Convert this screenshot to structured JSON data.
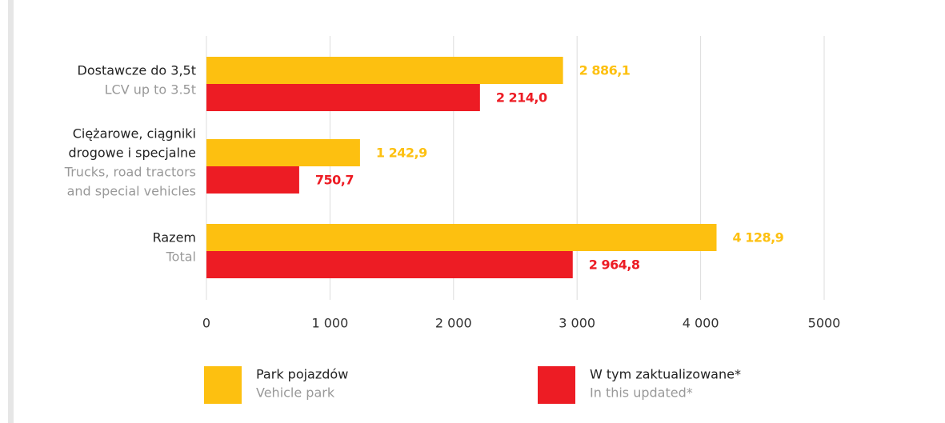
{
  "chart_data": {
    "type": "bar",
    "orientation": "horizontal",
    "categories": [
      [
        "Dostawcze do 3,5t"
      ],
      [
        "Ciężarowe, ciągniki",
        "drogowe i specjalne"
      ],
      [
        "Razem"
      ]
    ],
    "categories_en": [
      [
        "LCV up to 3.5t"
      ],
      [
        "Trucks, road tractors",
        "and special vehicles"
      ],
      [
        "Total"
      ]
    ],
    "series": [
      {
        "name": "Park pojazdów",
        "name_en": "Vehicle park",
        "color": "#fdc010",
        "values": [
          2886.1,
          1242.9,
          4128.9
        ],
        "value_labels": [
          "2 886,1",
          "1 242,9",
          "4 128,9"
        ]
      },
      {
        "name": "W tym zaktualizowane*",
        "name_en": "In this updated*",
        "color": "#ed1c24",
        "values": [
          2214.0,
          750.7,
          2964.8
        ],
        "value_labels": [
          "2 214,0",
          "750,7",
          "2 964,8"
        ]
      }
    ],
    "xlim": [
      0,
      5000
    ],
    "xticks": [
      0,
      {
        "value": 1000,
        "label": "1 000"
      },
      {
        "value": 2000,
        "label": "2 000"
      },
      {
        "value": 3000,
        "label": "3 000"
      },
      {
        "value": 4000,
        "label": "4 000"
      },
      5000
    ],
    "grid": true
  }
}
